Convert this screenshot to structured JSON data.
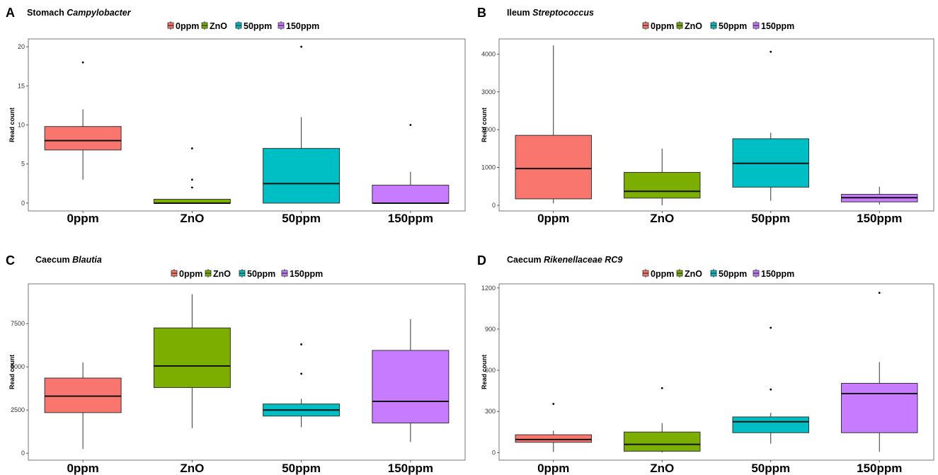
{
  "chart_data": [
    {
      "type": "box",
      "panel_label": "A",
      "title_prefix": "Stomach",
      "title_italic": "Campylobacter",
      "ylabel": "Read count",
      "ylim": [
        -1,
        21
      ],
      "yticks": [
        0,
        5,
        10,
        15,
        20
      ],
      "categories": [
        "0ppm",
        "ZnO",
        "50ppm",
        "150ppm"
      ],
      "legend": [
        "0ppm",
        "ZnO",
        "50ppm",
        "150ppm"
      ],
      "colors": [
        "#F8766D",
        "#7CAE00",
        "#00BFC4",
        "#C77CFF"
      ],
      "boxes": [
        {
          "q1": 6.8,
          "median": 8.0,
          "q3": 9.8,
          "whisker_low": 3.0,
          "whisker_high": 12.0,
          "outliers": [
            18
          ]
        },
        {
          "q1": 0.0,
          "median": 0.0,
          "q3": 0.5,
          "whisker_low": 0.0,
          "whisker_high": 0.5,
          "outliers": [
            2,
            3,
            7
          ]
        },
        {
          "q1": 0.0,
          "median": 2.5,
          "q3": 7.0,
          "whisker_low": 0.0,
          "whisker_high": 11.0,
          "outliers": [
            20
          ]
        },
        {
          "q1": 0.0,
          "median": 0.0,
          "q3": 2.3,
          "whisker_low": 0.0,
          "whisker_high": 4.0,
          "outliers": [
            10
          ]
        }
      ]
    },
    {
      "type": "box",
      "panel_label": "B",
      "title_prefix": "Ileum",
      "title_italic": "Streptococcus",
      "ylabel": "Read count",
      "ylim": [
        -150,
        4400
      ],
      "yticks": [
        0,
        1000,
        2000,
        3000,
        4000
      ],
      "categories": [
        "0ppm",
        "ZnO",
        "50ppm",
        "150ppm"
      ],
      "legend": [
        "0ppm",
        "ZnO",
        "50ppm",
        "150ppm"
      ],
      "colors": [
        "#F8766D",
        "#7CAE00",
        "#00BFC4",
        "#C77CFF"
      ],
      "boxes": [
        {
          "q1": 170,
          "median": 970,
          "q3": 1850,
          "whisker_low": 50,
          "whisker_high": 4230,
          "outliers": []
        },
        {
          "q1": 190,
          "median": 370,
          "q3": 870,
          "whisker_low": 0,
          "whisker_high": 1500,
          "outliers": []
        },
        {
          "q1": 480,
          "median": 1110,
          "q3": 1760,
          "whisker_low": 120,
          "whisker_high": 1920,
          "outliers": [
            4060
          ]
        },
        {
          "q1": 90,
          "median": 200,
          "q3": 290,
          "whisker_low": 20,
          "whisker_high": 490,
          "outliers": []
        }
      ]
    },
    {
      "type": "box",
      "panel_label": "C",
      "title_prefix": "Caecum",
      "title_italic": "Blautia",
      "ylabel": "Read count",
      "ylim": [
        -400,
        9800
      ],
      "yticks": [
        0,
        2500,
        5000,
        7500
      ],
      "categories": [
        "0ppm",
        "ZnO",
        "50ppm",
        "150ppm"
      ],
      "legend": [
        "0ppm",
        "ZnO",
        "50ppm",
        "150ppm"
      ],
      "colors": [
        "#F8766D",
        "#7CAE00",
        "#00BFC4",
        "#C77CFF"
      ],
      "boxes": [
        {
          "q1": 2350,
          "median": 3300,
          "q3": 4350,
          "whisker_low": 250,
          "whisker_high": 5250,
          "outliers": []
        },
        {
          "q1": 3800,
          "median": 5050,
          "q3": 7250,
          "whisker_low": 1450,
          "whisker_high": 9200,
          "outliers": []
        },
        {
          "q1": 2150,
          "median": 2500,
          "q3": 2850,
          "whisker_low": 1500,
          "whisker_high": 3150,
          "outliers": [
            4600,
            6300
          ]
        },
        {
          "q1": 1750,
          "median": 3000,
          "q3": 5950,
          "whisker_low": 650,
          "whisker_high": 7750,
          "outliers": []
        }
      ]
    },
    {
      "type": "box",
      "panel_label": "D",
      "title_prefix": "Caecum",
      "title_italic": "Rikenellaceae RC9",
      "ylabel": "Read count",
      "ylim": [
        -55,
        1230
      ],
      "yticks": [
        0,
        300,
        600,
        900,
        1200
      ],
      "categories": [
        "0ppm",
        "ZnO",
        "50ppm",
        "150ppm"
      ],
      "legend": [
        "0ppm",
        "ZnO",
        "50ppm",
        "150ppm"
      ],
      "colors": [
        "#F8766D",
        "#7CAE00",
        "#00BFC4",
        "#C77CFF"
      ],
      "boxes": [
        {
          "q1": 75,
          "median": 95,
          "q3": 130,
          "whisker_low": 5,
          "whisker_high": 160,
          "outliers": [
            355
          ]
        },
        {
          "q1": 10,
          "median": 60,
          "q3": 150,
          "whisker_low": 0,
          "whisker_high": 215,
          "outliers": [
            470
          ]
        },
        {
          "q1": 145,
          "median": 225,
          "q3": 260,
          "whisker_low": 65,
          "whisker_high": 290,
          "outliers": [
            460,
            910
          ]
        },
        {
          "q1": 145,
          "median": 430,
          "q3": 505,
          "whisker_low": 5,
          "whisker_high": 660,
          "outliers": [
            1165
          ]
        }
      ]
    }
  ]
}
